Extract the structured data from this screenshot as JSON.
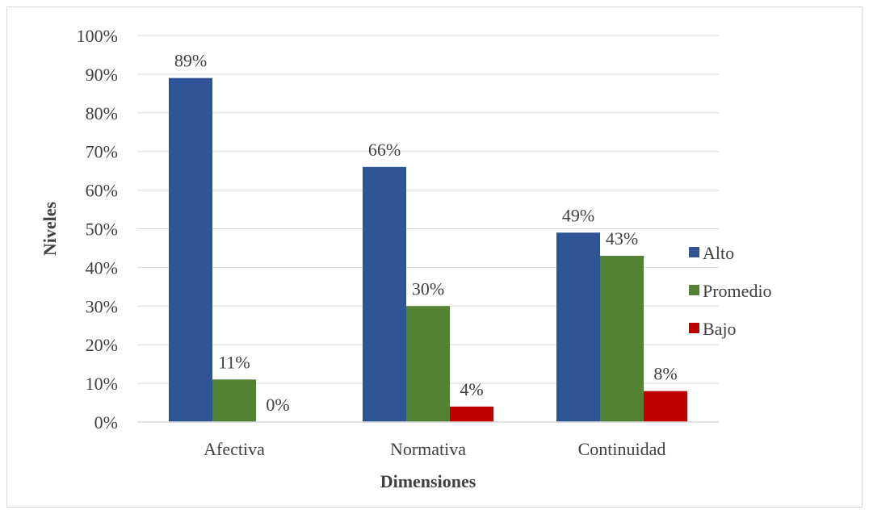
{
  "chart_data": {
    "type": "bar",
    "categories": [
      "Afectiva",
      "Normativa",
      "Continuidad"
    ],
    "series": [
      {
        "name": "Alto",
        "values": [
          89,
          66,
          49
        ],
        "labels": [
          "89%",
          "66%",
          "49%"
        ],
        "color": "#2F5597"
      },
      {
        "name": "Promedio",
        "values": [
          11,
          30,
          43
        ],
        "labels": [
          "11%",
          "30%",
          "43%"
        ],
        "color": "#548235"
      },
      {
        "name": "Bajo",
        "values": [
          0,
          4,
          8
        ],
        "labels": [
          "0%",
          "4%",
          "8%"
        ],
        "color": "#C00000"
      }
    ],
    "xlabel": "Dimensiones",
    "ylabel": "Niveles",
    "ylim": [
      0,
      100
    ],
    "yticks": [
      "0%",
      "10%",
      "20%",
      "30%",
      "40%",
      "50%",
      "60%",
      "70%",
      "80%",
      "90%",
      "100%"
    ],
    "grid": true,
    "legend": "right"
  }
}
